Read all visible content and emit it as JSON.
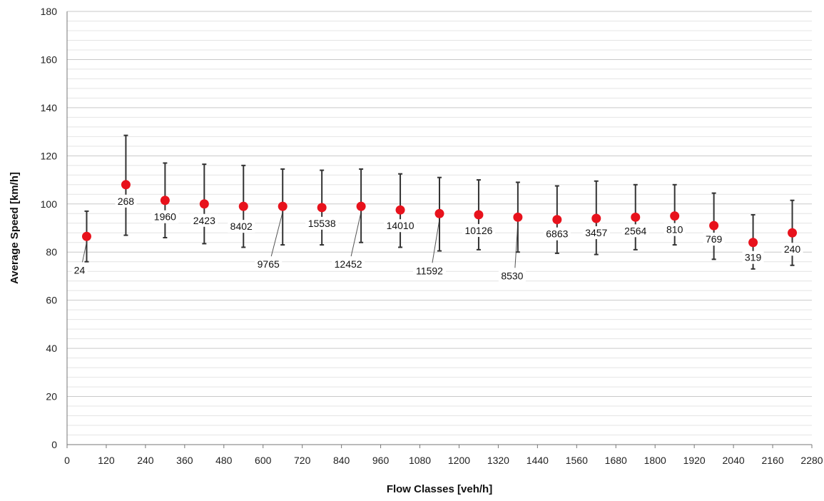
{
  "chart_data": {
    "type": "scatter",
    "xlabel": "Flow Classes [veh/h]",
    "ylabel": "Average Speed [km/h]",
    "xlim": [
      0,
      2280
    ],
    "ylim": [
      0,
      180
    ],
    "x_ticks": [
      "0",
      "120",
      "240",
      "360",
      "480",
      "600",
      "720",
      "840",
      "960",
      "1080",
      "1200",
      "1320",
      "1440",
      "1560",
      "1680",
      "1800",
      "1920",
      "2040",
      "2160",
      "2280"
    ],
    "y_ticks": [
      "0",
      "20",
      "40",
      "60",
      "80",
      "100",
      "120",
      "140",
      "160",
      "180"
    ],
    "grid": true,
    "marker_color": "#e8121c",
    "errorbar_color": "#333333",
    "points": [
      {
        "x": 60,
        "y": 86.5,
        "ymin": 76,
        "ymax": 97,
        "count": "24"
      },
      {
        "x": 180,
        "y": 108,
        "ymin": 87,
        "ymax": 128.5,
        "count": "268"
      },
      {
        "x": 300,
        "y": 101.5,
        "ymin": 86,
        "ymax": 117,
        "count": "1960"
      },
      {
        "x": 420,
        "y": 100,
        "ymin": 83.5,
        "ymax": 116.5,
        "count": "2423"
      },
      {
        "x": 540,
        "y": 99,
        "ymin": 82,
        "ymax": 116,
        "count": "8402"
      },
      {
        "x": 660,
        "y": 99,
        "ymin": 83,
        "ymax": 114.5,
        "count": "9765"
      },
      {
        "x": 780,
        "y": 98.5,
        "ymin": 83,
        "ymax": 114,
        "count": "15538"
      },
      {
        "x": 900,
        "y": 99,
        "ymin": 84,
        "ymax": 114.5,
        "count": "12452"
      },
      {
        "x": 1020,
        "y": 97.5,
        "ymin": 82,
        "ymax": 112.5,
        "count": "14010"
      },
      {
        "x": 1140,
        "y": 96,
        "ymin": 80.5,
        "ymax": 111,
        "count": "11592"
      },
      {
        "x": 1260,
        "y": 95.5,
        "ymin": 81,
        "ymax": 110,
        "count": "10126"
      },
      {
        "x": 1380,
        "y": 94.5,
        "ymin": 80,
        "ymax": 109,
        "count": "8530"
      },
      {
        "x": 1500,
        "y": 93.5,
        "ymin": 79.5,
        "ymax": 107.5,
        "count": "6863"
      },
      {
        "x": 1620,
        "y": 94,
        "ymin": 79,
        "ymax": 109.5,
        "count": "3457"
      },
      {
        "x": 1740,
        "y": 94.5,
        "ymin": 81,
        "ymax": 108,
        "count": "2564"
      },
      {
        "x": 1860,
        "y": 95,
        "ymin": 83,
        "ymax": 108,
        "count": "810"
      },
      {
        "x": 1980,
        "y": 91,
        "ymin": 77,
        "ymax": 104.5,
        "count": "769"
      },
      {
        "x": 2100,
        "y": 84,
        "ymin": 73,
        "ymax": 95.5,
        "count": "319"
      },
      {
        "x": 2220,
        "y": 88,
        "ymin": 74.5,
        "ymax": 101.5,
        "count": "240"
      }
    ]
  }
}
